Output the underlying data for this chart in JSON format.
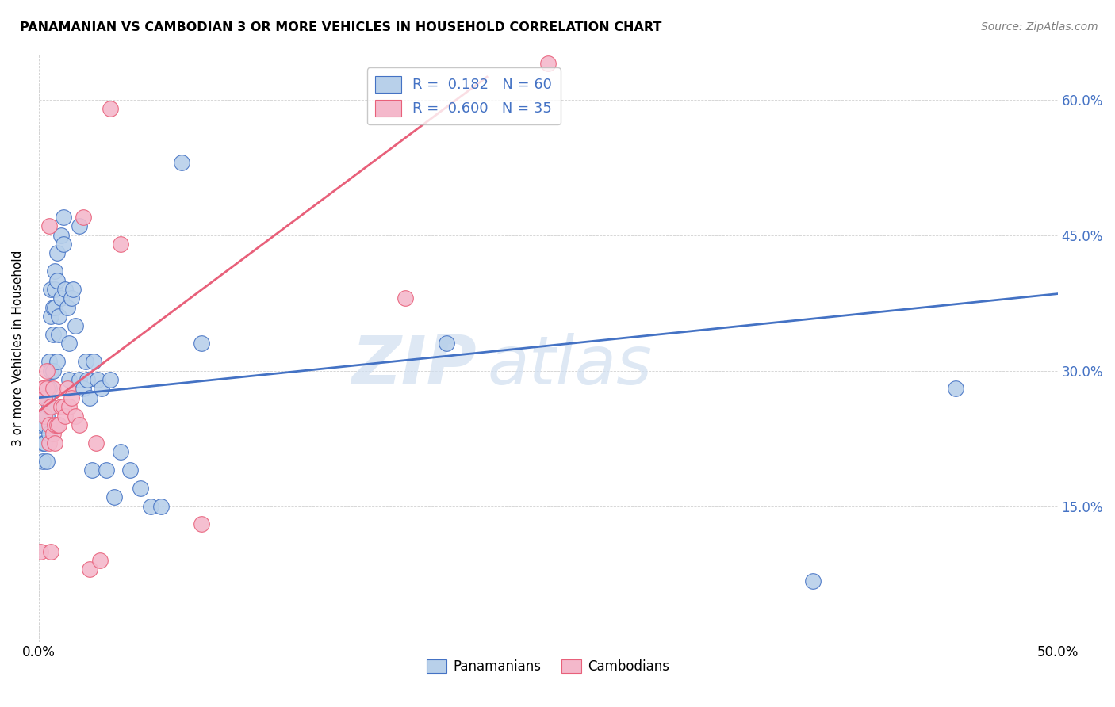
{
  "title": "PANAMANIAN VS CAMBODIAN 3 OR MORE VEHICLES IN HOUSEHOLD CORRELATION CHART",
  "source": "Source: ZipAtlas.com",
  "ylabel": "3 or more Vehicles in Household",
  "watermark": "ZIPatlas",
  "xlim": [
    0.0,
    0.5
  ],
  "ylim": [
    0.0,
    0.65
  ],
  "blue_color": "#b8d0ea",
  "pink_color": "#f4b8cb",
  "blue_line_color": "#4472c4",
  "pink_line_color": "#e8607a",
  "panamanian_label": "Panamanians",
  "cambodian_label": "Cambodians",
  "blue_line_x0": 0.0,
  "blue_line_y0": 0.27,
  "blue_line_x1": 0.5,
  "blue_line_y1": 0.385,
  "pink_line_x0": 0.0,
  "pink_line_y0": 0.255,
  "pink_line_x1": 0.22,
  "pink_line_y1": 0.625,
  "pan_x": [
    0.001,
    0.002,
    0.002,
    0.003,
    0.003,
    0.004,
    0.004,
    0.004,
    0.005,
    0.005,
    0.005,
    0.005,
    0.006,
    0.006,
    0.006,
    0.007,
    0.007,
    0.007,
    0.008,
    0.008,
    0.008,
    0.009,
    0.009,
    0.009,
    0.01,
    0.01,
    0.011,
    0.011,
    0.012,
    0.012,
    0.013,
    0.014,
    0.015,
    0.015,
    0.016,
    0.017,
    0.018,
    0.02,
    0.02,
    0.022,
    0.023,
    0.024,
    0.025,
    0.026,
    0.027,
    0.029,
    0.031,
    0.033,
    0.035,
    0.037,
    0.04,
    0.045,
    0.05,
    0.055,
    0.06,
    0.07,
    0.08,
    0.2,
    0.38,
    0.45
  ],
  "pan_y": [
    0.24,
    0.22,
    0.2,
    0.22,
    0.24,
    0.25,
    0.2,
    0.27,
    0.28,
    0.31,
    0.26,
    0.23,
    0.3,
    0.36,
    0.39,
    0.34,
    0.3,
    0.37,
    0.41,
    0.39,
    0.37,
    0.43,
    0.4,
    0.31,
    0.36,
    0.34,
    0.45,
    0.38,
    0.47,
    0.44,
    0.39,
    0.37,
    0.33,
    0.29,
    0.38,
    0.39,
    0.35,
    0.29,
    0.46,
    0.28,
    0.31,
    0.29,
    0.27,
    0.19,
    0.31,
    0.29,
    0.28,
    0.19,
    0.29,
    0.16,
    0.21,
    0.19,
    0.17,
    0.15,
    0.15,
    0.53,
    0.33,
    0.33,
    0.067,
    0.28
  ],
  "cam_x": [
    0.001,
    0.002,
    0.002,
    0.003,
    0.003,
    0.004,
    0.004,
    0.005,
    0.005,
    0.005,
    0.006,
    0.006,
    0.007,
    0.007,
    0.008,
    0.008,
    0.009,
    0.01,
    0.011,
    0.012,
    0.013,
    0.014,
    0.015,
    0.016,
    0.018,
    0.02,
    0.022,
    0.025,
    0.028,
    0.03,
    0.035,
    0.04,
    0.08,
    0.18,
    0.25
  ],
  "cam_y": [
    0.1,
    0.28,
    0.28,
    0.27,
    0.25,
    0.28,
    0.3,
    0.22,
    0.24,
    0.46,
    0.26,
    0.1,
    0.28,
    0.23,
    0.24,
    0.22,
    0.24,
    0.24,
    0.26,
    0.26,
    0.25,
    0.28,
    0.26,
    0.27,
    0.25,
    0.24,
    0.47,
    0.08,
    0.22,
    0.09,
    0.59,
    0.44,
    0.13,
    0.38,
    0.64
  ]
}
